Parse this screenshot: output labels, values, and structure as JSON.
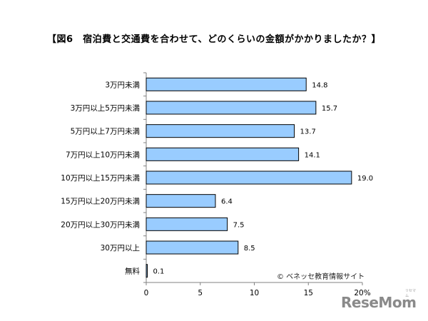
{
  "title": "【図6　宿泊費と交通費を合わせて、どのくらいの金額がかかりましたか？】",
  "copyright": "© ベネッセ教育情報サイト",
  "logo": {
    "text": "ReseMom",
    "sub": "リセマム"
  },
  "colors": {
    "bar_fill": "#99ccff",
    "bar_stroke": "#000000",
    "axis": "#808080"
  },
  "chart_data": {
    "type": "bar",
    "orientation": "horizontal",
    "categories": [
      "3万円未満",
      "3万円以上5万円未満",
      "5万円以上7万円未満",
      "7万円以上10万円未満",
      "10万円以上15万円未満",
      "15万円以上20万円未満",
      "20万円以上30万円未満",
      "30万円以上",
      "無料"
    ],
    "values": [
      14.8,
      15.7,
      13.7,
      14.1,
      19.0,
      6.4,
      7.5,
      8.5,
      0.1
    ],
    "value_labels": [
      "14.8",
      "15.7",
      "13.7",
      "14.1",
      "19.0",
      "6.4",
      "7.5",
      "8.5",
      "0.1"
    ],
    "xlim": [
      0,
      20
    ],
    "xticks": [
      0,
      5,
      10,
      15,
      20
    ],
    "xtick_labels": [
      "0",
      "5",
      "10",
      "15",
      "20%"
    ],
    "grid": false,
    "legend": "none"
  }
}
